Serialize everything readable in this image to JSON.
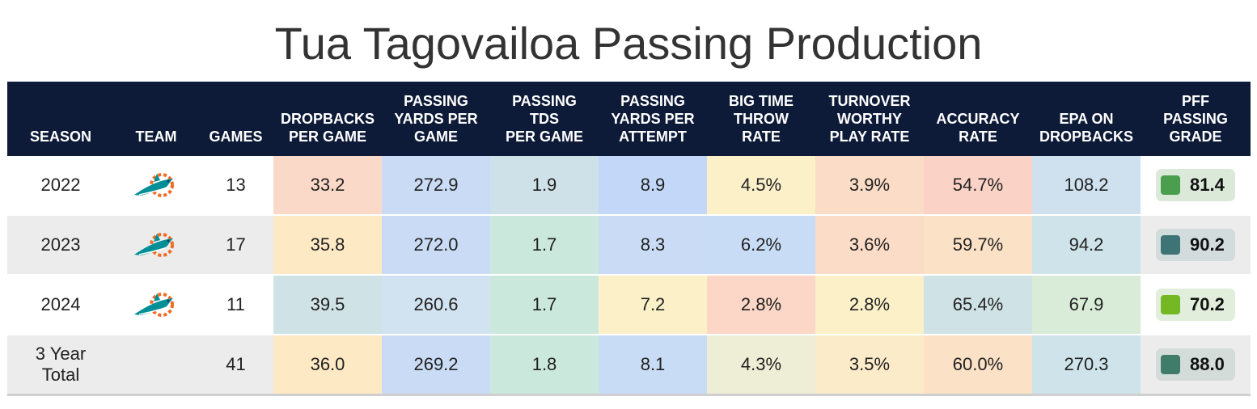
{
  "title": "Tua Tagovailoa Passing Production",
  "headers": {
    "season": "SEASON",
    "team": "TEAM",
    "games": "GAMES",
    "dropbacks": "DROPBACKS\nPER GAME",
    "pass_yds": "PASSING\nYARDS PER\nGAME",
    "pass_tds": "PASSING\nTDS\nPER GAME",
    "ypa": "PASSING\nYARDS PER\nATTEMPT",
    "btt": "BIG TIME\nTHROW\nRATE",
    "twp": "TURNOVER\nWORTHY\nPLAY RATE",
    "acc": "ACCURACY\nRATE",
    "epa": "EPA ON\nDROPBACKS",
    "grade": "PFF\nPASSING\nGRADE"
  },
  "rows": [
    {
      "season": "2022",
      "team_logo": "dolphins-logo-icon",
      "games": "13",
      "dropbacks": "33.2",
      "pass_yds": "272.9",
      "pass_tds": "1.9",
      "ypa": "8.9",
      "btt": "4.5%",
      "twp": "3.9%",
      "acc": "54.7%",
      "epa": "108.2",
      "grade": "81.4",
      "colors": {
        "dropbacks": "#fbd9c8",
        "pass_yds": "#cadcf5",
        "pass_tds": "#cfe1e8",
        "ypa": "#c3d8f8",
        "btt": "#fbf0c8",
        "twp": "#fbdcc6",
        "acc": "#fbd3c6",
        "epa": "#cfe1ef",
        "grade_swatch": "#4a9e4e",
        "grade_bg": "#dbe9d9"
      }
    },
    {
      "season": "2023",
      "team_logo": "dolphins-logo-icon",
      "games": "17",
      "dropbacks": "35.8",
      "pass_yds": "272.0",
      "pass_tds": "1.7",
      "ypa": "8.3",
      "btt": "6.2%",
      "twp": "3.6%",
      "acc": "59.7%",
      "epa": "94.2",
      "grade": "90.2",
      "colors": {
        "dropbacks": "#fde9c3",
        "pass_yds": "#cadcf5",
        "pass_tds": "#cbe8dc",
        "ypa": "#cadcf5",
        "btt": "#c8dcf5",
        "twp": "#fbdcc6",
        "acc": "#fbe1c6",
        "epa": "#cee3ea",
        "grade_swatch": "#3e7476",
        "grade_bg": "#d3dcdc"
      }
    },
    {
      "season": "2024",
      "team_logo": "dolphins-logo-icon",
      "games": "11",
      "dropbacks": "39.5",
      "pass_yds": "260.6",
      "pass_tds": "1.7",
      "ypa": "7.2",
      "btt": "2.8%",
      "twp": "2.8%",
      "acc": "65.4%",
      "epa": "67.9",
      "grade": "70.2",
      "colors": {
        "dropbacks": "#cfe3e6",
        "pass_yds": "#d1e2f0",
        "pass_tds": "#cbe8dc",
        "ypa": "#fbf0c8",
        "btt": "#fcd6c6",
        "twp": "#fbf0c8",
        "acc": "#cfe3e6",
        "epa": "#d8ecd8",
        "grade_swatch": "#74b824",
        "grade_bg": "#e0eedb"
      }
    },
    {
      "season": "3 Year\nTotal",
      "team_logo": "",
      "games": "41",
      "dropbacks": "36.0",
      "pass_yds": "269.2",
      "pass_tds": "1.8",
      "ypa": "8.1",
      "btt": "4.3%",
      "twp": "3.5%",
      "acc": "60.0%",
      "epa": "270.3",
      "grade": "88.0",
      "colors": {
        "dropbacks": "#fde9c3",
        "pass_yds": "#cadcf5",
        "pass_tds": "#cbe8dc",
        "ypa": "#c8dcf5",
        "btt": "#eeeed6",
        "twp": "#fbebc8",
        "acc": "#fbe1c6",
        "epa": "#cee3ea",
        "grade_swatch": "#3f7c6a",
        "grade_bg": "#d3dcd8"
      }
    }
  ]
}
